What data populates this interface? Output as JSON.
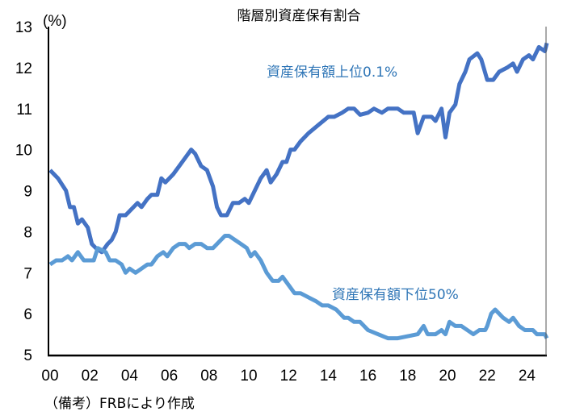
{
  "chart_data": {
    "type": "line",
    "title": "階層別資産保有割合",
    "ylabel": "(%)",
    "xlabel": "",
    "note": "（備考）FRBにより作成",
    "xlim": [
      2000,
      2025
    ],
    "ylim": [
      5,
      13
    ],
    "yticks": [
      "5",
      "6",
      "7",
      "8",
      "9",
      "10",
      "11",
      "12",
      "13"
    ],
    "xticks": [
      "00",
      "02",
      "04",
      "06",
      "08",
      "10",
      "12",
      "14",
      "16",
      "18",
      "20",
      "22",
      "24"
    ],
    "grid": false,
    "series": [
      {
        "name": "資産保有額上位0.1%",
        "color": "#4472C4",
        "label_color": "#2E75B6",
        "x": [
          2000,
          2000.4,
          2000.8,
          2001.0,
          2001.2,
          2001.4,
          2001.6,
          2001.9,
          2002.1,
          2002.3,
          2002.6,
          2002.9,
          2003.1,
          2003.3,
          2003.5,
          2003.8,
          2004.2,
          2004.4,
          2004.6,
          2004.9,
          2005.1,
          2005.4,
          2005.6,
          2005.8,
          2006.2,
          2006.5,
          2006.8,
          2007.1,
          2007.3,
          2007.6,
          2007.9,
          2008.2,
          2008.4,
          2008.6,
          2008.9,
          2009.2,
          2009.5,
          2009.8,
          2010.0,
          2010.3,
          2010.6,
          2010.9,
          2011.1,
          2011.4,
          2011.7,
          2011.9,
          2012.1,
          2012.3,
          2012.6,
          2013.0,
          2013.5,
          2014.0,
          2014.3,
          2014.7,
          2015.0,
          2015.3,
          2015.6,
          2016.0,
          2016.3,
          2016.7,
          2017.0,
          2017.5,
          2017.8,
          2018.3,
          2018.5,
          2018.8,
          2019.2,
          2019.4,
          2019.7,
          2019.9,
          2020.1,
          2020.4,
          2020.6,
          2020.9,
          2021.1,
          2021.5,
          2021.7,
          2022.0,
          2022.3,
          2022.6,
          2023.0,
          2023.3,
          2023.5,
          2023.8,
          2024.1,
          2024.3,
          2024.6,
          2024.9,
          2025.0
        ],
        "values": [
          9.5,
          9.3,
          9.0,
          8.6,
          8.6,
          8.2,
          8.3,
          8.1,
          7.7,
          7.6,
          7.5,
          7.7,
          7.8,
          8.0,
          8.4,
          8.4,
          8.6,
          8.7,
          8.6,
          8.8,
          8.9,
          8.9,
          9.3,
          9.2,
          9.4,
          9.6,
          9.8,
          10.0,
          9.9,
          9.6,
          9.5,
          9.1,
          8.6,
          8.4,
          8.4,
          8.7,
          8.7,
          8.8,
          8.7,
          9.0,
          9.3,
          9.5,
          9.2,
          9.4,
          9.7,
          9.7,
          10.0,
          10.0,
          10.2,
          10.4,
          10.6,
          10.8,
          10.8,
          10.9,
          11.0,
          11.0,
          10.85,
          10.9,
          11.0,
          10.9,
          11.0,
          11.0,
          10.9,
          10.9,
          10.4,
          10.8,
          10.8,
          10.7,
          11.0,
          10.3,
          10.9,
          11.1,
          11.6,
          11.9,
          12.2,
          12.35,
          12.2,
          11.7,
          11.7,
          11.9,
          12.0,
          12.1,
          11.9,
          12.2,
          12.3,
          12.2,
          12.5,
          12.4,
          12.6
        ]
      },
      {
        "name": "資産保有額下位50%",
        "color": "#5B9BD5",
        "label_color": "#2E75B6",
        "x": [
          2000,
          2000.3,
          2000.6,
          2000.9,
          2001.1,
          2001.4,
          2001.7,
          2002.2,
          2002.4,
          2002.8,
          2003.0,
          2003.3,
          2003.6,
          2003.8,
          2004.0,
          2004.3,
          2004.6,
          2004.9,
          2005.1,
          2005.4,
          2005.7,
          2005.9,
          2006.2,
          2006.5,
          2006.8,
          2007.0,
          2007.3,
          2007.6,
          2007.9,
          2008.2,
          2008.5,
          2008.8,
          2009.0,
          2009.3,
          2009.6,
          2009.9,
          2010.1,
          2010.3,
          2010.6,
          2010.9,
          2011.2,
          2011.5,
          2011.7,
          2012.0,
          2012.3,
          2012.6,
          2013.0,
          2013.4,
          2013.7,
          2014.0,
          2014.4,
          2014.8,
          2015.0,
          2015.3,
          2015.6,
          2016.0,
          2016.5,
          2017.0,
          2017.5,
          2018.0,
          2018.5,
          2018.8,
          2019.0,
          2019.4,
          2019.7,
          2019.9,
          2020.1,
          2020.4,
          2020.7,
          2021.0,
          2021.3,
          2021.6,
          2021.9,
          2022.0,
          2022.2,
          2022.4,
          2022.8,
          2023.1,
          2023.3,
          2023.6,
          2023.9,
          2024.3,
          2024.5,
          2024.9,
          2025.0
        ],
        "values": [
          7.2,
          7.3,
          7.3,
          7.4,
          7.3,
          7.5,
          7.3,
          7.3,
          7.6,
          7.5,
          7.3,
          7.3,
          7.2,
          7.0,
          7.1,
          7.0,
          7.1,
          7.2,
          7.2,
          7.4,
          7.5,
          7.4,
          7.6,
          7.7,
          7.7,
          7.6,
          7.7,
          7.7,
          7.6,
          7.6,
          7.75,
          7.9,
          7.9,
          7.8,
          7.7,
          7.6,
          7.4,
          7.5,
          7.3,
          7.0,
          6.8,
          6.8,
          6.9,
          6.7,
          6.5,
          6.5,
          6.4,
          6.3,
          6.2,
          6.2,
          6.1,
          5.9,
          5.9,
          5.8,
          5.8,
          5.6,
          5.5,
          5.4,
          5.4,
          5.45,
          5.5,
          5.7,
          5.5,
          5.5,
          5.6,
          5.5,
          5.8,
          5.7,
          5.7,
          5.6,
          5.5,
          5.6,
          5.6,
          5.7,
          6.0,
          6.1,
          5.9,
          5.8,
          5.9,
          5.7,
          5.6,
          5.6,
          5.5,
          5.5,
          5.4
        ]
      }
    ]
  }
}
